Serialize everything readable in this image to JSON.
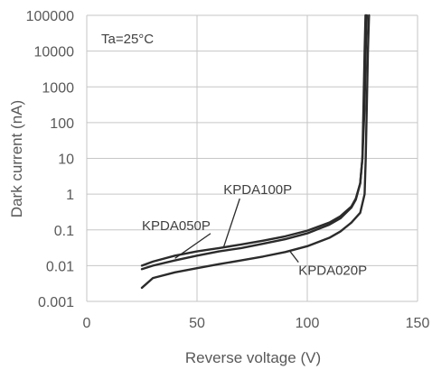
{
  "chart_data": {
    "type": "line",
    "title": "",
    "xlabel": "Reverse voltage  (V)",
    "ylabel": "Dark current  (nA)",
    "xlim": [
      0,
      150
    ],
    "ylim": [
      0.001,
      100000
    ],
    "yscale": "log",
    "grid": true,
    "x_ticks": [
      0,
      50,
      100,
      150
    ],
    "x_tick_labels": [
      "0",
      "50",
      "100",
      "150"
    ],
    "y_ticks": [
      0.001,
      0.01,
      0.1,
      1,
      10,
      100,
      1000,
      10000,
      100000
    ],
    "y_tick_labels": [
      "0.001",
      "0.01",
      "0.1",
      "1",
      "10",
      "100",
      "1000",
      "10000",
      "100000"
    ],
    "annotations": [
      {
        "text": "Ta=25°C"
      }
    ],
    "series": [
      {
        "name": "KPDA100P",
        "x": [
          25,
          30,
          40,
          50,
          60,
          70,
          80,
          90,
          100,
          110,
          115,
          120,
          122,
          124,
          125,
          126,
          126.5,
          127
        ],
        "y": [
          0.01,
          0.013,
          0.019,
          0.025,
          0.031,
          0.039,
          0.05,
          0.066,
          0.095,
          0.16,
          0.24,
          0.45,
          0.75,
          2,
          10,
          300,
          10000,
          100000
        ]
      },
      {
        "name": "KPDA050P",
        "x": [
          25,
          30,
          40,
          50,
          60,
          70,
          80,
          90,
          100,
          110,
          115,
          120,
          122,
          124,
          125,
          125.5,
          126,
          126.4
        ],
        "y": [
          0.008,
          0.01,
          0.014,
          0.019,
          0.025,
          0.031,
          0.041,
          0.055,
          0.08,
          0.14,
          0.21,
          0.42,
          0.7,
          2,
          10,
          300,
          10000,
          100000
        ]
      },
      {
        "name": "KPDA020P",
        "x": [
          25,
          30,
          40,
          50,
          60,
          70,
          80,
          90,
          100,
          110,
          115,
          120,
          124,
          126,
          126.5,
          127,
          127.5,
          128
        ],
        "y": [
          0.0024,
          0.0045,
          0.0065,
          0.0085,
          0.011,
          0.014,
          0.018,
          0.024,
          0.035,
          0.06,
          0.09,
          0.16,
          0.3,
          1,
          10,
          300,
          10000,
          100000
        ]
      }
    ],
    "series_labels": [
      {
        "series": "KPDA100P",
        "text": "KPDA100P",
        "label_x": 62,
        "label_y": 1.0,
        "anchor_x": 62,
        "anchor_y": 0.032
      },
      {
        "series": "KPDA050P",
        "text": "KPDA050P",
        "label_x": 25,
        "label_y": 0.1,
        "anchor_x": 40,
        "anchor_y": 0.016
      },
      {
        "series": "KPDA020P",
        "text": "KPDA020P",
        "label_x": 96,
        "label_y": 0.0055,
        "anchor_x": 92,
        "anchor_y": 0.026
      }
    ],
    "colors": {
      "line": "#2b2b2b",
      "grid": "#c6c6c6",
      "text": "#595959"
    }
  }
}
